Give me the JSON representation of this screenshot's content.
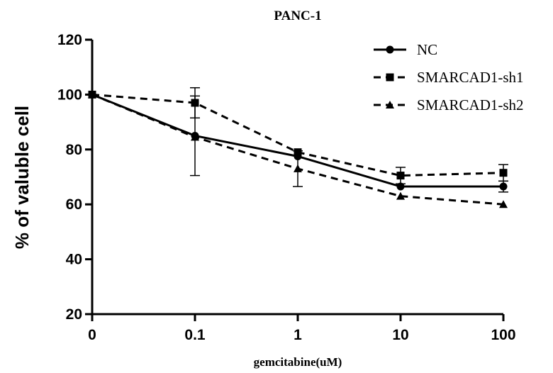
{
  "chart_data": {
    "type": "line",
    "title": "PANC-1",
    "xlabel": "gemcitabine(uM)",
    "ylabel": "% of valuble cell",
    "categories": [
      "0",
      "0.1",
      "1",
      "10",
      "100"
    ],
    "ylim": [
      20,
      120
    ],
    "yticks": [
      "20",
      "40",
      "60",
      "80",
      "100",
      "120"
    ],
    "grid": false,
    "legend_position": "top-right",
    "series": [
      {
        "name": "NC",
        "marker": "circle",
        "dash": "solid",
        "values": [
          100,
          85,
          77.5,
          66.5,
          66.5
        ],
        "error": [
          0,
          14.5,
          0,
          0,
          2
        ]
      },
      {
        "name": "SMARCAD1-sh1",
        "marker": "square",
        "dash": "dashed",
        "values": [
          100,
          97,
          79,
          70.5,
          71.5
        ],
        "error": [
          0,
          5.5,
          0,
          3,
          3
        ]
      },
      {
        "name": "SMARCAD1-sh2",
        "marker": "triangle",
        "dash": "dashed",
        "values": [
          100,
          84.5,
          73,
          63,
          60
        ],
        "error": [
          0,
          0,
          6.5,
          0,
          0
        ]
      }
    ],
    "colors": {
      "line": "#000000",
      "background": "#ffffff"
    }
  }
}
